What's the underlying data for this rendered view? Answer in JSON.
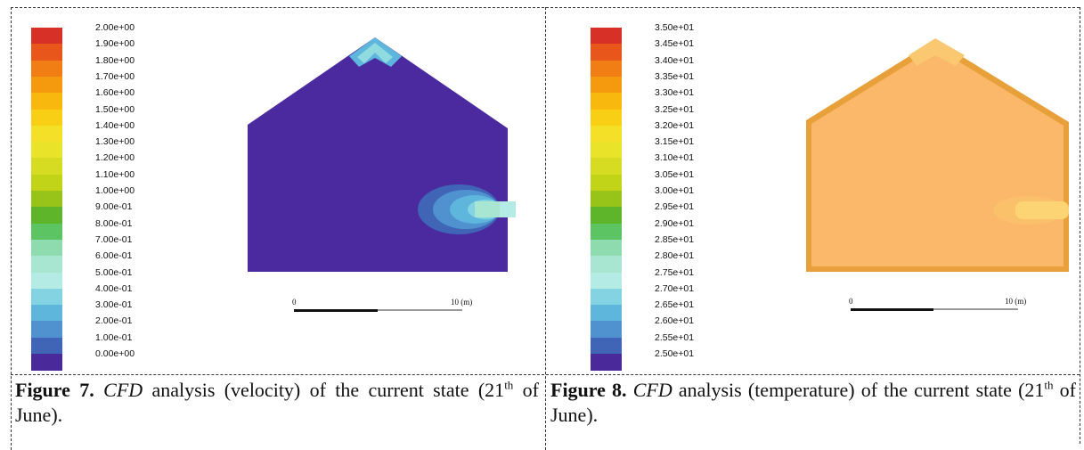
{
  "figure7": {
    "legend_labels": [
      "2.00e+00",
      "1.90e+00",
      "1.80e+00",
      "1.70e+00",
      "1.60e+00",
      "1.50e+00",
      "1.40e+00",
      "1.30e+00",
      "1.20e+00",
      "1.10e+00",
      "1.00e+00",
      "9.00e-01",
      "8.00e-01",
      "7.00e-01",
      "6.00e-01",
      "5.00e-01",
      "4.00e-01",
      "3.00e-01",
      "2.00e-01",
      "1.00e-01",
      "0.00e+00"
    ],
    "scale_start": "0",
    "scale_end": "10 (m)",
    "caption": {
      "label": "Figure 7.",
      "abbr": "CFD",
      "text_a": " analysis (velocity) of the current state (21",
      "sup": "th",
      "text_b": " of June)."
    }
  },
  "figure8": {
    "legend_labels": [
      "3.50e+01",
      "3.45e+01",
      "3.40e+01",
      "3.35e+01",
      "3.30e+01",
      "3.25e+01",
      "3.20e+01",
      "3.15e+01",
      "3.10e+01",
      "3.05e+01",
      "3.00e+01",
      "2.95e+01",
      "2.90e+01",
      "2.85e+01",
      "2.80e+01",
      "2.75e+01",
      "2.70e+01",
      "2.65e+01",
      "2.60e+01",
      "2.55e+01",
      "2.50e+01"
    ],
    "scale_start": "0",
    "scale_end": "10 (m)",
    "caption": {
      "label": "Figure 8.",
      "abbr": "CFD",
      "text_a": " analysis (temperature) of the current state (21",
      "sup": "th",
      "text_b": " of June)."
    }
  },
  "colormap": [
    "#d73027",
    "#e8561c",
    "#f07e14",
    "#f59a0f",
    "#f8b80e",
    "#f9cf16",
    "#f4e026",
    "#e9e32a",
    "#d6dc22",
    "#c2d418",
    "#98c41a",
    "#5fb52a",
    "#5cc462",
    "#8fdbb0",
    "#a9e6d2",
    "#b5ebe5",
    "#83d3e2",
    "#5fb6dc",
    "#4f92cf",
    "#4064b6",
    "#4a2a9a"
  ]
}
